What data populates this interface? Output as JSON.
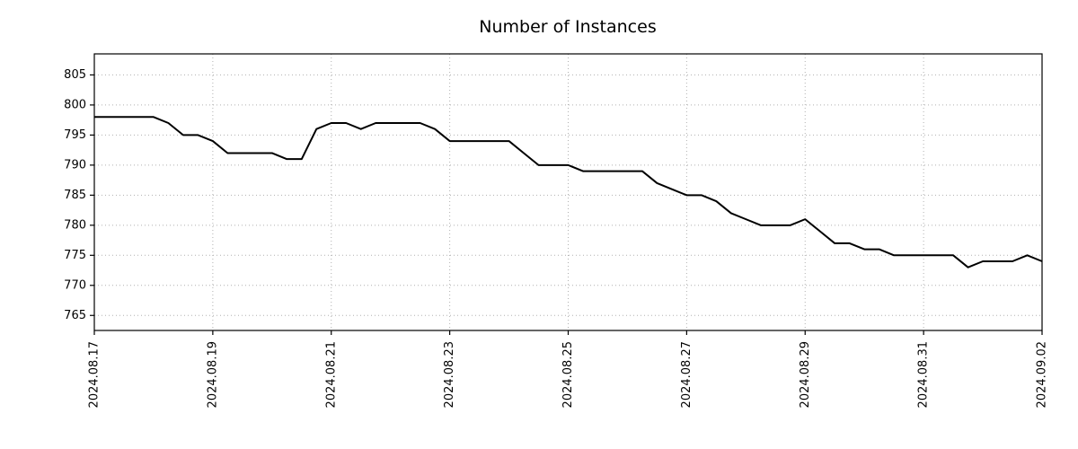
{
  "page": {
    "title": "Number of Instances"
  },
  "chart_data": {
    "type": "line",
    "title": "Number of Instances",
    "xlabel": "",
    "ylabel": "",
    "x_unit": "days since 2024.08.17 (0.25 = 6-hour sample)",
    "x": [
      0,
      0.25,
      0.5,
      0.75,
      1,
      1.25,
      1.5,
      1.75,
      2,
      2.25,
      2.5,
      2.75,
      3,
      3.25,
      3.5,
      3.75,
      4,
      4.25,
      4.5,
      4.75,
      5,
      5.25,
      5.5,
      5.75,
      6,
      6.25,
      6.5,
      6.75,
      7,
      7.25,
      7.5,
      7.75,
      8,
      8.25,
      8.5,
      8.75,
      9,
      9.25,
      9.5,
      9.75,
      10,
      10.25,
      10.5,
      10.75,
      11,
      11.25,
      11.5,
      11.75,
      12,
      12.25,
      12.5,
      12.75,
      13,
      13.25,
      13.5,
      13.75,
      14,
      14.25,
      14.5,
      14.75,
      15,
      15.25,
      15.5,
      15.75,
      16
    ],
    "values": [
      798,
      798,
      798,
      798,
      798,
      797,
      795,
      795,
      794,
      792,
      792,
      792,
      792,
      791,
      791,
      796,
      797,
      797,
      796,
      797,
      797,
      797,
      797,
      796,
      794,
      794,
      794,
      794,
      794,
      792,
      790,
      790,
      790,
      789,
      789,
      789,
      789,
      789,
      787,
      786,
      785,
      785,
      784,
      782,
      781,
      780,
      780,
      780,
      781,
      779,
      777,
      777,
      776,
      776,
      775,
      775,
      775,
      775,
      775,
      773,
      774,
      774,
      774,
      775,
      774
    ],
    "xticks": [
      {
        "pos": 0,
        "label": "2024.08.17"
      },
      {
        "pos": 2,
        "label": "2024.08.19"
      },
      {
        "pos": 4,
        "label": "2024.08.21"
      },
      {
        "pos": 6,
        "label": "2024.08.23"
      },
      {
        "pos": 8,
        "label": "2024.08.25"
      },
      {
        "pos": 10,
        "label": "2024.08.27"
      },
      {
        "pos": 12,
        "label": "2024.08.29"
      },
      {
        "pos": 14,
        "label": "2024.08.31"
      },
      {
        "pos": 16,
        "label": "2024.09.02"
      }
    ],
    "yticks": [
      765,
      770,
      775,
      780,
      785,
      790,
      795,
      800,
      805
    ],
    "xlim": [
      0,
      16
    ],
    "ylim": [
      762.5,
      808.5
    ],
    "line_color": "#000000",
    "grid_color": "#b0b0b0",
    "grid_style": "dotted",
    "legend_position": "none"
  }
}
